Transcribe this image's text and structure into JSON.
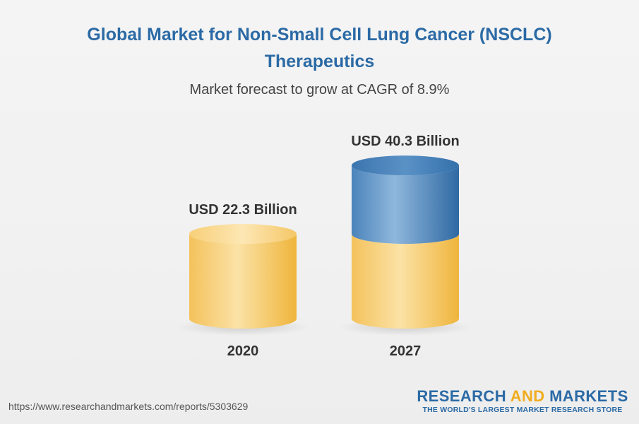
{
  "title_lines": [
    "Global Market for Non-Small Cell Lung Cancer (NSCLC)",
    "Therapeutics"
  ],
  "subtitle": "Market forecast to grow at CAGR of 8.9%",
  "source_url": "https://www.researchandmarkets.com/reports/5303629",
  "brand": {
    "name_part1": "RESEARCH ",
    "name_part2": "AND",
    "name_part3": " MARKETS",
    "tagline": "THE WORLD'S LARGEST MARKET RESEARCH STORE"
  },
  "colors": {
    "title": "#2b6aa5",
    "base_segment": "#f0b84a",
    "growth_segment": "#3e78b0"
  },
  "chart_data": {
    "type": "bar",
    "categories": [
      "2020",
      "2027"
    ],
    "values": [
      22.3,
      40.3
    ],
    "value_labels": [
      "USD 22.3 Billion",
      "USD 40.3 Billion"
    ],
    "unit": "USD Billion",
    "cagr": "8.9%"
  }
}
